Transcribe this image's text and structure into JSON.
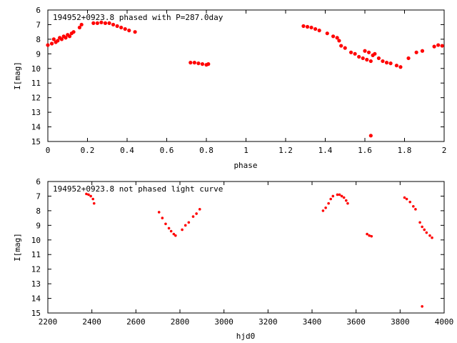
{
  "chart_data": [
    {
      "type": "scatter",
      "title": "194952+0923.8 phased with P=287.0day",
      "xlabel": "phase",
      "ylabel": "I[mag]",
      "xlim": [
        0,
        2
      ],
      "ylim": [
        6,
        15
      ],
      "y_inverted": true,
      "x_ticks": [
        "0",
        "0.2",
        "0.4",
        "0.6",
        "0.8",
        "1",
        "1.2",
        "1.4",
        "1.6",
        "1.8",
        "2"
      ],
      "y_ticks": [
        "6",
        "7",
        "8",
        "9",
        "10",
        "11",
        "12",
        "13",
        "14",
        "15"
      ],
      "grid": false,
      "series": [
        {
          "color": "#ff0000",
          "points": [
            [
              0.0,
              8.4
            ],
            [
              0.02,
              8.3
            ],
            [
              0.03,
              8.0
            ],
            [
              0.04,
              8.2
            ],
            [
              0.05,
              8.1
            ],
            [
              0.06,
              7.9
            ],
            [
              0.07,
              8.0
            ],
            [
              0.08,
              7.8
            ],
            [
              0.09,
              7.9
            ],
            [
              0.1,
              7.7
            ],
            [
              0.11,
              7.8
            ],
            [
              0.12,
              7.6
            ],
            [
              0.13,
              7.5
            ],
            [
              0.16,
              7.2
            ],
            [
              0.17,
              7.0
            ],
            [
              0.23,
              6.9
            ],
            [
              0.25,
              6.9
            ],
            [
              0.27,
              6.85
            ],
            [
              0.29,
              6.9
            ],
            [
              0.31,
              6.9
            ],
            [
              0.33,
              7.0
            ],
            [
              0.35,
              7.1
            ],
            [
              0.37,
              7.2
            ],
            [
              0.39,
              7.3
            ],
            [
              0.41,
              7.4
            ],
            [
              0.44,
              7.5
            ],
            [
              0.72,
              9.6
            ],
            [
              0.74,
              9.6
            ],
            [
              0.76,
              9.65
            ],
            [
              0.78,
              9.7
            ],
            [
              0.8,
              9.75
            ],
            [
              0.81,
              9.7
            ],
            [
              1.29,
              7.1
            ],
            [
              1.31,
              7.15
            ],
            [
              1.33,
              7.2
            ],
            [
              1.35,
              7.3
            ],
            [
              1.37,
              7.4
            ],
            [
              1.41,
              7.6
            ],
            [
              1.44,
              7.8
            ],
            [
              1.46,
              7.9
            ],
            [
              1.47,
              8.1
            ],
            [
              1.48,
              8.45
            ],
            [
              1.5,
              8.6
            ],
            [
              1.53,
              8.9
            ],
            [
              1.55,
              9.0
            ],
            [
              1.57,
              9.2
            ],
            [
              1.59,
              9.3
            ],
            [
              1.6,
              8.8
            ],
            [
              1.61,
              9.4
            ],
            [
              1.62,
              8.9
            ],
            [
              1.63,
              9.5
            ],
            [
              1.64,
              9.1
            ],
            [
              1.65,
              9.0
            ],
            [
              1.67,
              9.3
            ],
            [
              1.69,
              9.5
            ],
            [
              1.71,
              9.6
            ],
            [
              1.73,
              9.65
            ],
            [
              1.76,
              9.8
            ],
            [
              1.78,
              9.9
            ],
            [
              1.82,
              9.3
            ],
            [
              1.86,
              8.9
            ],
            [
              1.89,
              8.8
            ],
            [
              1.95,
              8.5
            ],
            [
              1.97,
              8.4
            ],
            [
              1.99,
              8.45
            ],
            [
              1.63,
              14.6
            ]
          ]
        }
      ]
    },
    {
      "type": "scatter",
      "title": "194952+0923.8 not phased light curve",
      "xlabel": "hjd0",
      "ylabel": "I[mag]",
      "xlim": [
        2200,
        4000
      ],
      "ylim": [
        6,
        15
      ],
      "y_inverted": true,
      "x_ticks": [
        "2200",
        "2400",
        "2600",
        "2800",
        "3000",
        "3200",
        "3400",
        "3600",
        "3800",
        "4000"
      ],
      "y_ticks": [
        "6",
        "7",
        "8",
        "9",
        "10",
        "11",
        "12",
        "13",
        "14",
        "15"
      ],
      "grid": false,
      "series": [
        {
          "color": "#ff0000",
          "points": [
            [
              2375,
              6.85
            ],
            [
              2385,
              6.9
            ],
            [
              2395,
              7.0
            ],
            [
              2405,
              7.2
            ],
            [
              2410,
              7.5
            ],
            [
              2705,
              8.1
            ],
            [
              2720,
              8.5
            ],
            [
              2735,
              8.9
            ],
            [
              2750,
              9.2
            ],
            [
              2760,
              9.4
            ],
            [
              2772,
              9.6
            ],
            [
              2780,
              9.7
            ],
            [
              2810,
              9.3
            ],
            [
              2825,
              9.0
            ],
            [
              2840,
              8.8
            ],
            [
              2860,
              8.4
            ],
            [
              2875,
              8.2
            ],
            [
              2890,
              7.9
            ],
            [
              3450,
              8.0
            ],
            [
              3462,
              7.8
            ],
            [
              3475,
              7.5
            ],
            [
              3485,
              7.2
            ],
            [
              3495,
              7.0
            ],
            [
              3515,
              6.9
            ],
            [
              3525,
              6.9
            ],
            [
              3535,
              7.0
            ],
            [
              3545,
              7.1
            ],
            [
              3555,
              7.3
            ],
            [
              3562,
              7.5
            ],
            [
              3650,
              9.6
            ],
            [
              3660,
              9.7
            ],
            [
              3670,
              9.75
            ],
            [
              3820,
              7.1
            ],
            [
              3830,
              7.2
            ],
            [
              3845,
              7.4
            ],
            [
              3860,
              7.7
            ],
            [
              3870,
              7.9
            ],
            [
              3890,
              8.8
            ],
            [
              3900,
              9.1
            ],
            [
              3910,
              9.3
            ],
            [
              3920,
              9.5
            ],
            [
              3935,
              9.7
            ],
            [
              3945,
              9.85
            ],
            [
              3900,
              14.55
            ]
          ]
        }
      ]
    }
  ]
}
